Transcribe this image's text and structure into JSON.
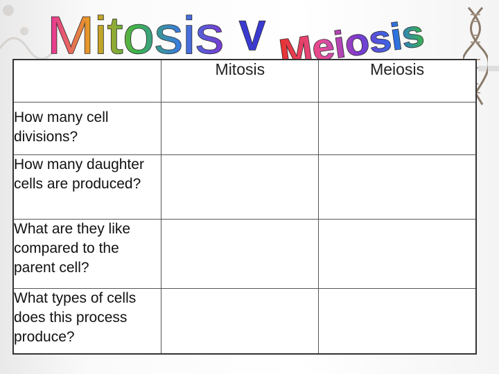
{
  "title": {
    "mitosis_word": "Mitosis",
    "versus": "V",
    "meiosis_word": "Meiosis"
  },
  "colors": {
    "title_mitosis_gradient": [
      "#e62e9e",
      "#e6a020",
      "#3bb54a",
      "#3a7be0",
      "#7a3ad0"
    ],
    "title_versus": "#3a3ad0",
    "title_meiosis": [
      "#e6332a",
      "#e64d9c",
      "#7a3ad0",
      "#2e6ee6",
      "#3bb54a"
    ],
    "table_border": "#333333",
    "dna_decoration": "#9a8a7a"
  },
  "icons": [
    "dna-helix-icon"
  ],
  "table": {
    "columns": [
      "Mitosis",
      "Meiosis"
    ],
    "rows": [
      {
        "question": "How many cell divisions?",
        "mitosis": "",
        "meiosis": ""
      },
      {
        "question": "How many daughter cells are produced?",
        "mitosis": "",
        "meiosis": ""
      },
      {
        "question": "What are they like compared to the parent cell?",
        "mitosis": "",
        "meiosis": ""
      },
      {
        "question": "What types of cells does this process produce?",
        "mitosis": "",
        "meiosis": ""
      }
    ]
  }
}
